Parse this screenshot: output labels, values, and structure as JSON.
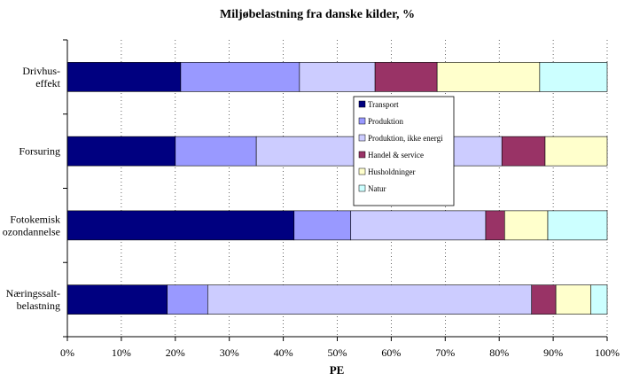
{
  "chart_data": {
    "type": "bar",
    "orientation": "horizontal",
    "stacked": "percent",
    "title": "Miljøbelastning fra danske kilder, %",
    "xlabel": "PE",
    "ylabel": "",
    "xlim": [
      0,
      100
    ],
    "xticks": [
      "0%",
      "10%",
      "20%",
      "30%",
      "40%",
      "50%",
      "60%",
      "70%",
      "80%",
      "90%",
      "100%"
    ],
    "grid": "vertical dotted",
    "legend_position": "center",
    "categories": [
      [
        "Drivhus-",
        "effekt"
      ],
      [
        "Forsuring"
      ],
      [
        "Fotokemisk",
        "ozondannelse"
      ],
      [
        "Næringssalt-",
        "belastning"
      ]
    ],
    "series": [
      {
        "name": "Transport",
        "color": "#000080",
        "values": [
          21,
          20,
          42,
          18.5
        ]
      },
      {
        "name": "Produktion",
        "color": "#9999ff",
        "values": [
          22,
          15,
          10.5,
          7.5
        ]
      },
      {
        "name": "Produktion, ikke energi",
        "color": "#ccccff",
        "values": [
          14,
          45.5,
          25,
          60
        ]
      },
      {
        "name": "Handel & service",
        "color": "#993366",
        "values": [
          11.5,
          8,
          3.5,
          4.5
        ]
      },
      {
        "name": "Husholdninger",
        "color": "#ffffcc",
        "values": [
          19,
          11.5,
          8,
          6.5
        ]
      },
      {
        "name": "Natur",
        "color": "#ccffff",
        "values": [
          12.5,
          0,
          11,
          3
        ]
      }
    ]
  }
}
